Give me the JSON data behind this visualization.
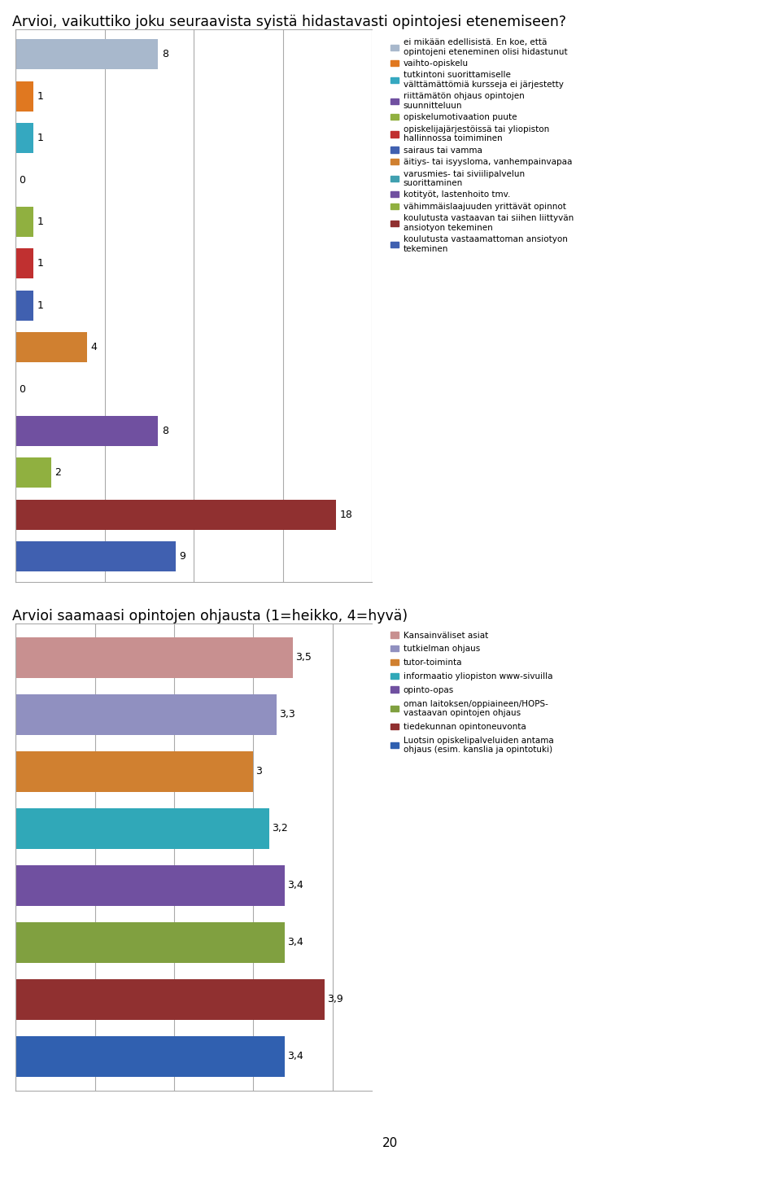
{
  "chart1": {
    "title": "Arvioi, vaikuttiko joku seuraavista syistä hidastavasti opintojesi etenemiseen?",
    "values": [
      8,
      1,
      1,
      0,
      1,
      1,
      1,
      4,
      0,
      8,
      2,
      18,
      9
    ],
    "colors": [
      "#a8b8cc",
      "#e07820",
      "#35a8c0",
      "#7050a0",
      "#90b040",
      "#c03030",
      "#4060b0",
      "#d08030",
      "#40a0b0",
      "#7050a0",
      "#90b040",
      "#903030",
      "#4060b0"
    ],
    "legend_labels": [
      "ei mikään edellisistä. En koe, että\nopintojeni eteneminen olisi hidastunut",
      "vaihto-opiskelu",
      "tutkintoni suorittamiselle\nvälttämättömiä kursseja ei järjestetty",
      "riittämätön ohjaus opintojen\nsuunnitteluun",
      "opiskelumotivaation puute",
      "opiskelijajärjestöissä tai yliopiston\nhallinnossa toimiminen",
      "sairaus tai vamma",
      "äitiys- tai isyysloma, vanhempainvapaa",
      "varusmies- tai siviilipalvelun\nsuorittaminen",
      "kotityöt, lastenhoito tmv.",
      "vähimmäislaajuuden yrittävät opinnot",
      "koulutusta vastaavan tai siihen liittyvän\nansiotyon tekeminen",
      "koulutusta vastaamattoman ansiotyon\ntekeminen"
    ],
    "xlim": [
      0,
      20
    ],
    "xticks": [
      0,
      5,
      10,
      15,
      20
    ]
  },
  "chart2": {
    "title": "Arvioi saamaasi opintojen ohjausta (1=heikko, 4=hyvä)",
    "values": [
      3.5,
      3.3,
      3.0,
      3.2,
      3.4,
      3.4,
      3.9,
      3.4
    ],
    "colors": [
      "#c89090",
      "#9090c0",
      "#d08030",
      "#30a8b8",
      "#7050a0",
      "#80a040",
      "#903030",
      "#3060b0"
    ],
    "legend_labels": [
      "Kansainväliset asiat",
      "tutkielman ohjaus",
      "tutor-toiminta",
      "informaatio yliopiston www-sivuilla",
      "opinto-opas",
      "oman laitoksen/oppiaineen/HOPS-\nvastaavan opintojen ohjaus",
      "tiedekunnan opintoneuvonta",
      "Luotsin opiskelipalveluiden antama\nohjaus (esim. kanslia ja opintotuki)"
    ],
    "xlim": [
      0,
      4.5
    ],
    "xticks": [
      0,
      1,
      2,
      3,
      4
    ]
  },
  "page_number": "20",
  "bg": "#ffffff"
}
